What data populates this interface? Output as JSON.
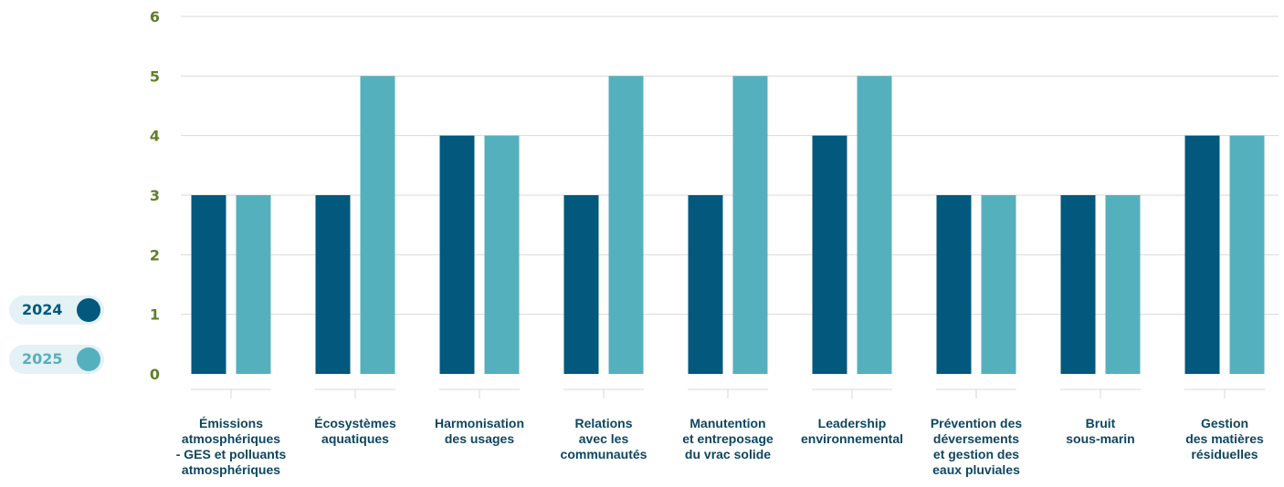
{
  "colors": {
    "series_2024": "#02587d",
    "series_2025": "#55b0be",
    "ytick": "#5f7f2a",
    "gridline": "#d9d9d9",
    "xlabel": "#0e4660",
    "legend_bg": "#e4f1f5"
  },
  "legend": [
    {
      "label": "2024",
      "color": "#02587d"
    },
    {
      "label": "2025",
      "color": "#55b0be"
    }
  ],
  "chart_data": {
    "type": "bar",
    "categories": [
      [
        "Émissions",
        "atmosphériques",
        "- GES et polluants",
        "atmosphériques"
      ],
      [
        "Écosystèmes",
        "aquatiques"
      ],
      [
        "Harmonisation",
        "des usages"
      ],
      [
        "Relations",
        "avec les",
        "communautés"
      ],
      [
        "Manutention",
        "et entreposage",
        "du vrac solide"
      ],
      [
        "Leadership",
        "environnemental"
      ],
      [
        "Prévention des",
        "déversements",
        "et gestion des",
        "eaux pluviales"
      ],
      [
        "Bruit",
        "sous-marin"
      ],
      [
        "Gestion",
        "des matières",
        "résiduelles"
      ]
    ],
    "series": [
      {
        "name": "2024",
        "values": [
          3,
          3,
          4,
          3,
          3,
          4,
          3,
          3,
          4
        ]
      },
      {
        "name": "2025",
        "values": [
          3,
          5,
          4,
          5,
          5,
          5,
          3,
          3,
          4
        ]
      }
    ],
    "ylim": [
      0,
      6
    ],
    "yticks": [
      "0",
      "1",
      "2",
      "3",
      "4",
      "5",
      "6"
    ],
    "grid": true,
    "legend_position": "left"
  }
}
